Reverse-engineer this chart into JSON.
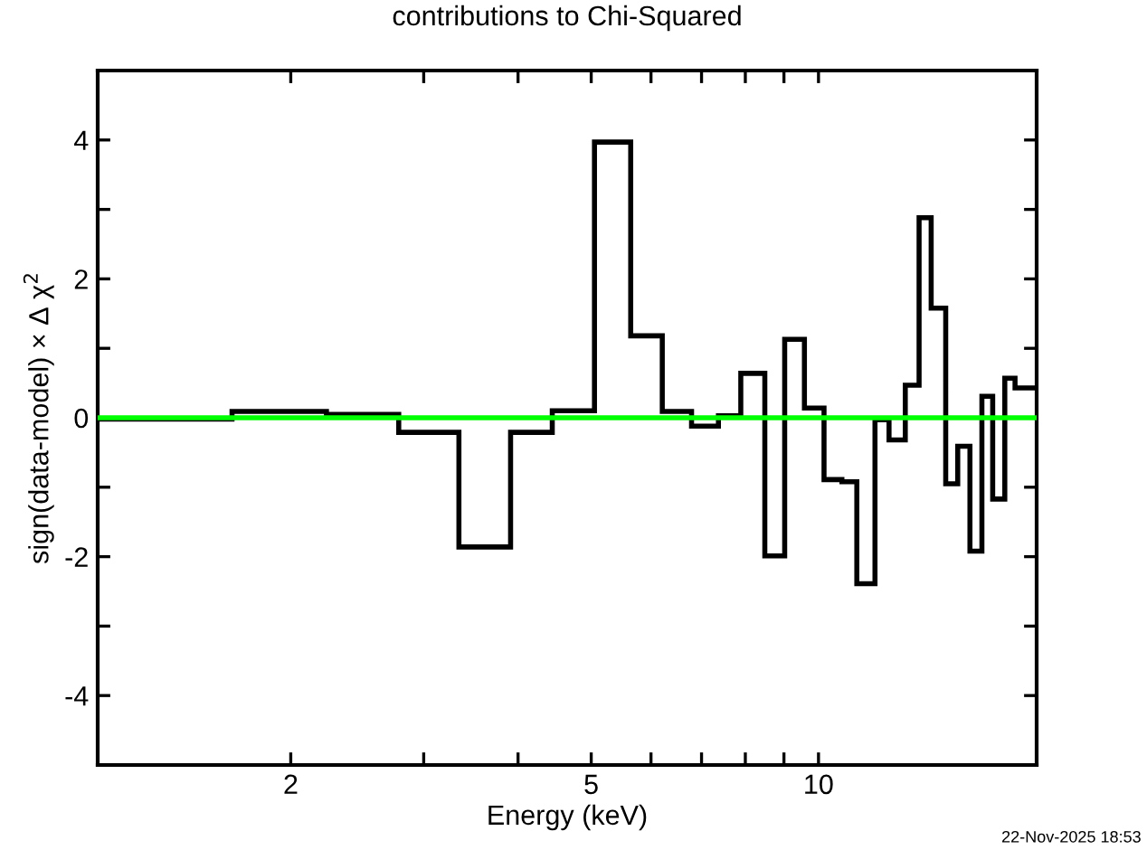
{
  "chart_data": {
    "type": "histogram",
    "title": "contributions to Chi-Squared",
    "xlabel": "Energy (keV)",
    "ylabel": "sign(data-model) × Δ χ$^{2}$",
    "bins": [
      1.11,
      1.672,
      2.23,
      2.78,
      3.34,
      3.91,
      4.44,
      5.05,
      5.64,
      6.21,
      6.79,
      7.37,
      7.89,
      8.49,
      9.02,
      9.58,
      10.17,
      10.74,
      11.24,
      11.88,
      12.4,
      13.03,
      13.59,
      14.1,
      14.74,
      15.29,
      15.87,
      16.46,
      17.01,
      17.65,
      18.21,
      19.45
    ],
    "values": [
      -0.02,
      0.09,
      0.05,
      -0.21,
      -1.86,
      -0.21,
      0.1,
      3.97,
      1.18,
      0.09,
      -0.12,
      0.03,
      0.64,
      -1.99,
      1.13,
      0.14,
      -0.89,
      -0.92,
      -2.39,
      -0.03,
      -0.32,
      0.47,
      2.88,
      1.58,
      -0.95,
      -0.41,
      -1.92,
      0.31,
      -1.17,
      0.57,
      0.43
    ],
    "color": "#000000",
    "log": "x",
    "xlim": [
      1.11,
      19.45
    ],
    "xticks": [
      2,
      {
        "value": 3,
        "label": null
      },
      {
        "value": 4,
        "label": null
      },
      5,
      {
        "value": 6,
        "label": null
      },
      {
        "value": 7,
        "label": null
      },
      {
        "value": 8,
        "label": null
      },
      {
        "value": 9,
        "label": null
      },
      10
    ],
    "ylim": [
      -5,
      5
    ],
    "yticks": [
      -4,
      {
        "value": -3,
        "label": null
      },
      -2,
      {
        "value": -1,
        "label": null
      },
      0,
      {
        "value": 1,
        "label": null
      },
      2,
      {
        "value": 3,
        "label": null
      },
      4
    ],
    "ref_lines": [
      {
        "axis": "y",
        "value": 0,
        "color": "#00ff00"
      }
    ],
    "annotations": [
      "22-Nov-2025 18:53"
    ]
  }
}
